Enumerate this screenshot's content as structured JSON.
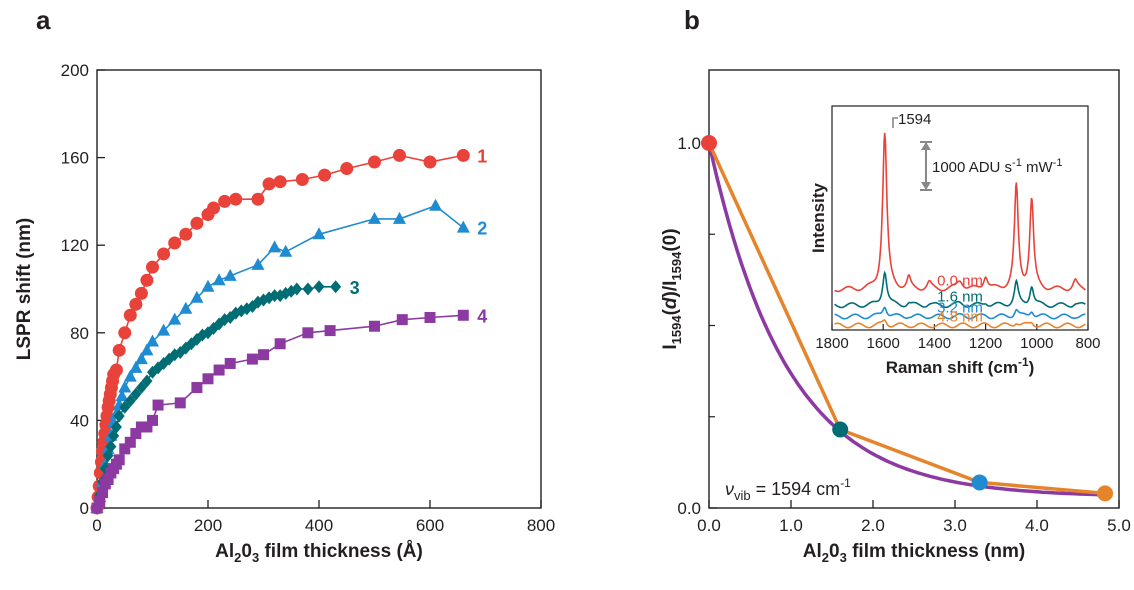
{
  "chart_data": [
    {
      "panel": "a",
      "type": "scatter",
      "xlabel": {
        "pre": "Al",
        "sub1": "2",
        "mid": "0",
        "sub2": "3",
        "post": " film thickness (Å)"
      },
      "ylabel": "LSPR shift (nm)",
      "xlim": [
        0,
        800
      ],
      "ylim": [
        0,
        200
      ],
      "xticks": [
        "0",
        "200",
        "400",
        "600",
        "800"
      ],
      "yticks": [
        "0",
        "40",
        "80",
        "120",
        "160",
        "200"
      ],
      "grid": false,
      "series": [
        {
          "name": "1",
          "marker": "circle",
          "color": "#e8423a",
          "x": [
            0,
            2,
            4,
            6,
            8,
            10,
            12,
            14,
            16,
            18,
            20,
            22,
            24,
            26,
            28,
            30,
            35,
            40,
            50,
            60,
            70,
            80,
            90,
            100,
            120,
            140,
            160,
            180,
            200,
            210,
            230,
            250,
            290,
            310,
            330,
            370,
            410,
            450,
            500,
            545,
            600,
            660
          ],
          "y": [
            0,
            5,
            10,
            16,
            21,
            26,
            30,
            34,
            38,
            42,
            46,
            49,
            52,
            55,
            58,
            61,
            63,
            72,
            80,
            88,
            93,
            98,
            104,
            110,
            116,
            121,
            125,
            130,
            134,
            137,
            140,
            141,
            141,
            148,
            149,
            150,
            152,
            155,
            158,
            161,
            158,
            161
          ]
        },
        {
          "name": "2",
          "marker": "triangle",
          "color": "#1f8bd1",
          "x": [
            0,
            5,
            10,
            15,
            20,
            25,
            30,
            35,
            40,
            45,
            50,
            60,
            70,
            80,
            90,
            100,
            120,
            140,
            160,
            180,
            200,
            220,
            240,
            290,
            320,
            340,
            400,
            500,
            545,
            610,
            660
          ],
          "y": [
            0,
            5,
            12,
            20,
            27,
            33,
            39,
            43,
            47,
            51,
            55,
            60,
            64,
            68,
            72,
            76,
            81,
            86,
            91,
            96,
            101,
            104,
            106,
            111,
            119,
            117,
            125,
            132,
            132,
            138,
            128
          ]
        },
        {
          "name": "3",
          "marker": "diamond",
          "color": "#006d74",
          "x": [
            0,
            5,
            10,
            15,
            20,
            25,
            30,
            35,
            40,
            50,
            60,
            70,
            80,
            90,
            100,
            110,
            120,
            130,
            140,
            150,
            160,
            170,
            180,
            190,
            200,
            210,
            220,
            230,
            240,
            250,
            260,
            270,
            280,
            290,
            300,
            310,
            320,
            330,
            340,
            350,
            360,
            380,
            400,
            430
          ],
          "y": [
            0,
            6,
            12,
            18,
            24,
            28,
            33,
            37,
            42,
            46,
            49,
            52,
            55,
            58,
            62,
            64,
            66,
            68,
            70,
            71,
            73,
            75,
            77,
            79,
            80,
            82,
            84,
            86,
            87,
            89,
            90,
            91,
            92,
            94,
            95,
            96,
            97,
            97,
            98,
            99,
            100,
            100,
            101,
            101
          ]
        },
        {
          "name": "4",
          "marker": "square",
          "color": "#8c3aa2",
          "x": [
            0,
            5,
            10,
            15,
            20,
            25,
            30,
            35,
            40,
            50,
            60,
            70,
            80,
            90,
            100,
            110,
            150,
            180,
            200,
            220,
            240,
            280,
            300,
            330,
            380,
            420,
            500,
            550,
            600,
            660
          ],
          "y": [
            0,
            3,
            7,
            11,
            13,
            16,
            18,
            20,
            22,
            27,
            30,
            34,
            37,
            37,
            40,
            47,
            48,
            55,
            59,
            63,
            66,
            68,
            70,
            75,
            80,
            81,
            83,
            86,
            87,
            88
          ]
        }
      ]
    },
    {
      "panel": "b",
      "type": "line",
      "xlabel": {
        "pre": "Al",
        "sub1": "2",
        "mid": "0",
        "sub2": "3",
        "post": " film thickness (nm)"
      },
      "ylabel": {
        "pre": "I",
        "sub1": "1594",
        "mid1": "(",
        "it": "d",
        "mid2": ")/I",
        "sub2": "1594",
        "post": "(0)"
      },
      "xlim": [
        0,
        5
      ],
      "ylim": [
        0,
        1.2
      ],
      "xticks": [
        "0.0",
        "1.0",
        "2.0",
        "3.0",
        "4.0",
        "5.0"
      ],
      "yticks": [
        {
          "v": 0,
          "label": "0.0"
        },
        {
          "v": 1,
          "label": "1.0"
        }
      ],
      "grid": false,
      "points": [
        {
          "x": 0.0,
          "y": 1.0,
          "color": "#e8423a"
        },
        {
          "x": 1.6,
          "y": 0.215,
          "color": "#006d74"
        },
        {
          "x": 3.3,
          "y": 0.07,
          "color": "#1f8bd1"
        },
        {
          "x": 4.83,
          "y": 0.04,
          "color": "#e6842c"
        }
      ],
      "segment_color": "#e6842c",
      "fit_color": "#8c3aa2",
      "fit": {
        "decay_length_nm": 0.95,
        "offset": 0.03
      },
      "annotation": {
        "symbol": "ν",
        "sub": "vib",
        "text": " =  1594 cm",
        "sup": "-1"
      },
      "inset": {
        "type": "line",
        "ylabel": "Intensity",
        "xlabel": {
          "pre": "Raman shift (cm",
          "sup": "-1",
          "post": ")"
        },
        "xlim": [
          1800,
          800
        ],
        "xticks": [
          "1800",
          "1600",
          "1400",
          "1200",
          "1000",
          "800"
        ],
        "peak_label": "1594",
        "scale_label": {
          "pre": "1000 ADU s",
          "sup1": "-1",
          "mid": " mW",
          "sup2": "-1"
        },
        "series": [
          {
            "name": "0.0 nm",
            "color": "#e8423a",
            "baseline": 0.18,
            "scale": 1.0
          },
          {
            "name": "1.6 nm",
            "color": "#006d74",
            "baseline": 0.11,
            "scale": 0.22
          },
          {
            "name": "3.2 nm",
            "color": "#1f8bd1",
            "baseline": 0.06,
            "scale": 0.07
          },
          {
            "name": "4.8 nm",
            "color": "#e6842c",
            "baseline": 0.02,
            "scale": 0.035
          }
        ]
      }
    }
  ]
}
